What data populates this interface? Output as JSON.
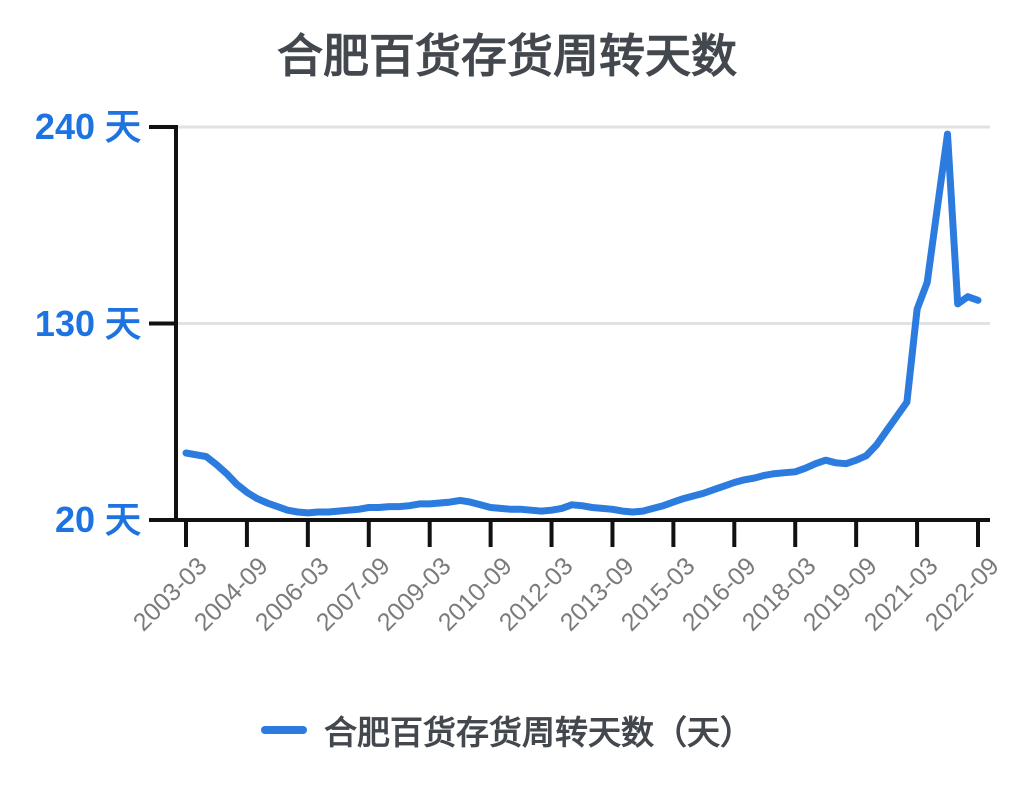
{
  "colors": {
    "line": "#2b7cde",
    "y_label": "#1d73e0",
    "title_text": "#43474e",
    "x_label": "#7b7b7b",
    "grid": "#e2e2e2",
    "axis": "#111111"
  },
  "legend": {
    "label": "合肥百货存货周转天数（天）"
  },
  "chart_data": {
    "type": "line",
    "title": "合肥百货存货周转天数",
    "unit": "天",
    "ylim": [
      20,
      240
    ],
    "grid": "horizontal-gridlines-at-y-ticks",
    "legend_position": "bottom-center",
    "y_ticks": [
      {
        "label": "240 天",
        "value": 240
      },
      {
        "label": "130 天",
        "value": 130
      },
      {
        "label": "20 天",
        "value": 20
      }
    ],
    "x_tick_labels": [
      "2003-03",
      "2004-09",
      "2006-03",
      "2007-09",
      "2009-03",
      "2010-09",
      "2012-03",
      "2013-09",
      "2015-03",
      "2016-09",
      "2018-03",
      "2019-09",
      "2021-03",
      "2022-09"
    ],
    "x_tick_every": 6,
    "series": [
      {
        "name": "合肥百货存货周转天数（天）",
        "color": "#2b7cde",
        "x": [
          "2003-03",
          "2003-06",
          "2003-09",
          "2003-12",
          "2004-03",
          "2004-06",
          "2004-09",
          "2004-12",
          "2005-03",
          "2005-06",
          "2005-09",
          "2005-12",
          "2006-03",
          "2006-06",
          "2006-09",
          "2006-12",
          "2007-03",
          "2007-06",
          "2007-09",
          "2007-12",
          "2008-03",
          "2008-06",
          "2008-09",
          "2008-12",
          "2009-03",
          "2009-06",
          "2009-09",
          "2009-12",
          "2010-03",
          "2010-06",
          "2010-09",
          "2010-12",
          "2011-03",
          "2011-06",
          "2011-09",
          "2011-12",
          "2012-03",
          "2012-06",
          "2012-09",
          "2012-12",
          "2013-03",
          "2013-06",
          "2013-09",
          "2013-12",
          "2014-03",
          "2014-06",
          "2014-09",
          "2014-12",
          "2015-03",
          "2015-06",
          "2015-09",
          "2015-12",
          "2016-03",
          "2016-06",
          "2016-09",
          "2016-12",
          "2017-03",
          "2017-06",
          "2017-09",
          "2017-12",
          "2018-03",
          "2018-06",
          "2018-09",
          "2018-12",
          "2019-03",
          "2019-06",
          "2019-09",
          "2019-12",
          "2020-03",
          "2020-06",
          "2020-09",
          "2020-12",
          "2021-03",
          "2021-06",
          "2021-09",
          "2021-12",
          "2022-03",
          "2022-06",
          "2022-09"
        ],
        "values": [
          57.5,
          56.5,
          55.5,
          51,
          46,
          40,
          35.5,
          32,
          29.5,
          27.5,
          25.5,
          24.5,
          24,
          24.5,
          24.5,
          25,
          25.5,
          26,
          27,
          27,
          27.5,
          27.5,
          28,
          29,
          29,
          29.5,
          30,
          31,
          30,
          28.5,
          27,
          26.5,
          26,
          26,
          25.5,
          25,
          25.5,
          26.5,
          28.5,
          28,
          27,
          26.5,
          26,
          25,
          24.5,
          25,
          26.5,
          28,
          30,
          32,
          33.5,
          35,
          37,
          39,
          41,
          42.5,
          43.5,
          45,
          46,
          46.5,
          47,
          49,
          51.5,
          53.5,
          52,
          51.5,
          53.5,
          56,
          62,
          70,
          78,
          86,
          138,
          153,
          195,
          236,
          141,
          145,
          143
        ]
      }
    ]
  }
}
